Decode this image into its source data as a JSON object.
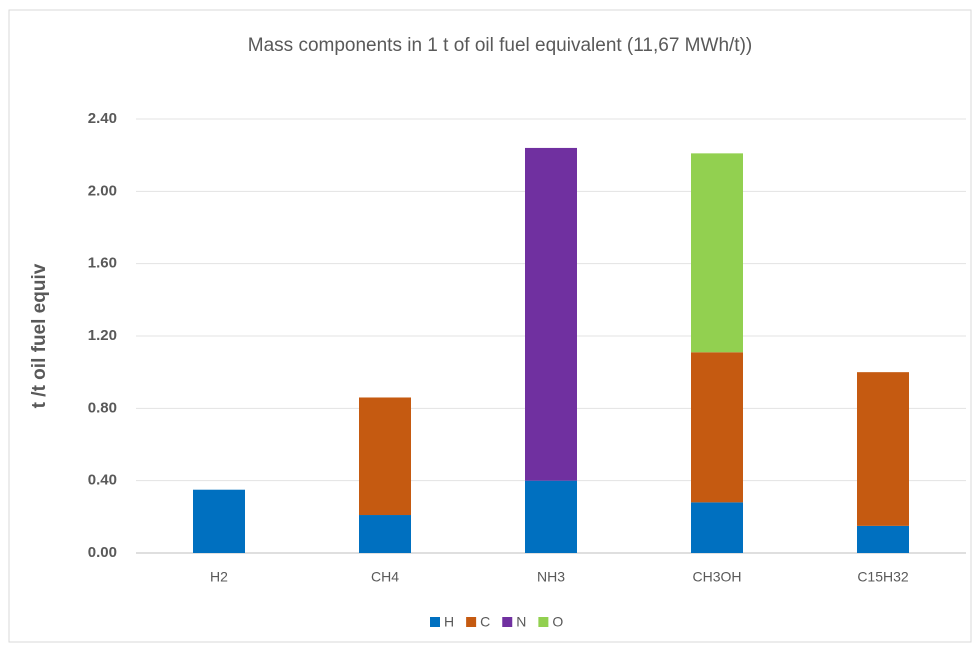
{
  "chart_data": {
    "type": "stacked_bar",
    "title": "Mass components in 1 t of oil fuel equivalent (11,67 MWh/t))",
    "y_label": "t /t oil fuel equiv",
    "categories": [
      "H2",
      "CH4",
      "NH3",
      "CH3OH",
      "C15H32"
    ],
    "series": [
      {
        "name": "H",
        "color": "#0070c0",
        "values": [
          0.35,
          0.21,
          0.4,
          0.28,
          0.15
        ]
      },
      {
        "name": "C",
        "color": "#c55a11",
        "values": [
          null,
          0.65,
          null,
          0.83,
          0.85
        ]
      },
      {
        "name": "N",
        "color": "#7030a0",
        "values": [
          null,
          null,
          1.84,
          null,
          null
        ]
      },
      {
        "name": "O",
        "color": "#92d050",
        "values": [
          null,
          null,
          null,
          1.1,
          null
        ]
      }
    ],
    "ylim": [
      0,
      2.4
    ],
    "yticks": [
      {
        "value": 0,
        "label": "0.00"
      },
      {
        "value": 0.4,
        "label": "0.40"
      },
      {
        "value": 0.8,
        "label": "0.80"
      },
      {
        "value": 1.2,
        "label": "1.20"
      },
      {
        "value": 1.6,
        "label": "1.60"
      },
      {
        "value": 2.0,
        "label": "2.00"
      },
      {
        "value": 2.4,
        "label": "2.40"
      }
    ],
    "grid": true,
    "legend": "bottom"
  }
}
